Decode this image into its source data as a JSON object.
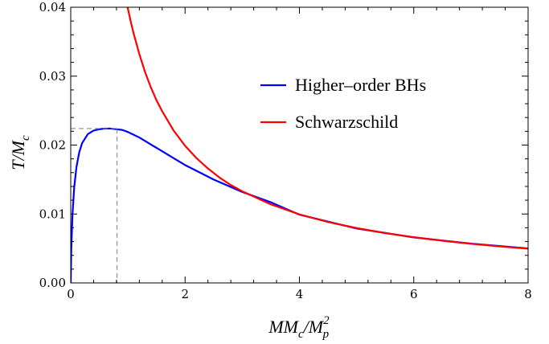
{
  "chart_data": {
    "type": "line",
    "xlabel": {
      "base": "MM",
      "sub1": "c",
      "mid": "/M",
      "sub2": "p",
      "sup2": "2"
    },
    "ylabel": {
      "base": "T/M",
      "sub": "c"
    },
    "xlim": [
      0,
      8
    ],
    "ylim": [
      0,
      0.04
    ],
    "xticks": [
      0,
      2,
      4,
      6,
      8
    ],
    "xtick_labels": [
      "0",
      "2",
      "4",
      "6",
      "8"
    ],
    "yticks": [
      0,
      0.01,
      0.02,
      0.03,
      0.04
    ],
    "ytick_labels": [
      "0.00",
      "0.01",
      "0.02",
      "0.03",
      "0.04"
    ],
    "grid": false,
    "legend_position": "top-right",
    "series": [
      {
        "name": "Higher–order BHs",
        "color": "#0000ff",
        "x": [
          0.0,
          0.01,
          0.03,
          0.06,
          0.1,
          0.15,
          0.2,
          0.3,
          0.4,
          0.5,
          0.6,
          0.7,
          0.8,
          0.9,
          1.0,
          1.2,
          1.4,
          1.6,
          1.8,
          2.0,
          2.5,
          3.0,
          3.5,
          4.0,
          5.0,
          6.0,
          7.0,
          8.0
        ],
        "y": [
          0.0,
          0.005,
          0.0098,
          0.0138,
          0.0168,
          0.019,
          0.0203,
          0.0216,
          0.0221,
          0.0223,
          0.0224,
          0.0224,
          0.0223,
          0.0222,
          0.0219,
          0.0211,
          0.0201,
          0.0191,
          0.0181,
          0.0171,
          0.015,
          0.0132,
          0.0117,
          0.0099,
          0.0079,
          0.0066,
          0.0057,
          0.005
        ]
      },
      {
        "name": "Schwarzschild",
        "color": "#ff0000",
        "x": [
          0.995,
          1.05,
          1.1,
          1.2,
          1.3,
          1.4,
          1.5,
          1.6,
          1.8,
          2.0,
          2.2,
          2.4,
          2.6,
          2.8,
          3.0,
          3.5,
          4.0,
          4.5,
          5.0,
          5.5,
          6.0,
          6.5,
          7.0,
          7.5,
          8.0
        ],
        "y": [
          0.04,
          0.0379,
          0.0362,
          0.0332,
          0.0306,
          0.0284,
          0.0265,
          0.0249,
          0.0221,
          0.0199,
          0.0181,
          0.0166,
          0.0153,
          0.0142,
          0.0133,
          0.0114,
          0.00995,
          0.00884,
          0.00796,
          0.00723,
          0.00663,
          0.00612,
          0.00568,
          0.0053,
          0.00497
        ]
      }
    ],
    "annotations": [
      {
        "type": "dashed-guide",
        "x": 0.81,
        "y": 0.0224,
        "color": "#808080"
      }
    ]
  }
}
